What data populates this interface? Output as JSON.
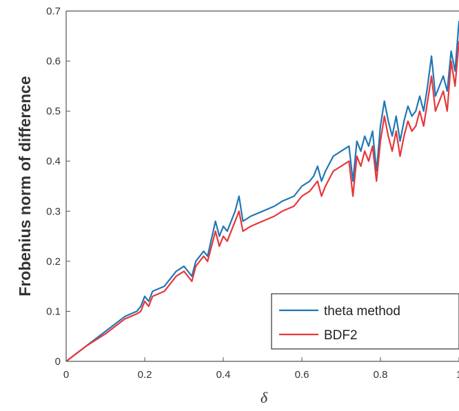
{
  "chart_data": {
    "type": "line",
    "title": "",
    "xlabel": "δ",
    "ylabel": "Frobenius norm of difference",
    "xlim": [
      0,
      1
    ],
    "ylim": [
      0,
      0.7
    ],
    "x_ticks": [
      "0",
      "0.2",
      "0.4",
      "0.6",
      "0.8",
      "1"
    ],
    "y_ticks": [
      "0",
      "0.1",
      "0.2",
      "0.3",
      "0.4",
      "0.5",
      "0.6",
      "0.7"
    ],
    "grid": false,
    "legend_position": "bottom-right",
    "series": [
      {
        "name": "theta method",
        "color": "#1f77b4",
        "x": [
          0,
          0.05,
          0.1,
          0.15,
          0.18,
          0.19,
          0.2,
          0.21,
          0.22,
          0.25,
          0.28,
          0.3,
          0.32,
          0.33,
          0.35,
          0.36,
          0.38,
          0.39,
          0.4,
          0.41,
          0.42,
          0.43,
          0.44,
          0.45,
          0.47,
          0.5,
          0.53,
          0.55,
          0.58,
          0.6,
          0.62,
          0.63,
          0.64,
          0.65,
          0.66,
          0.68,
          0.7,
          0.72,
          0.73,
          0.74,
          0.75,
          0.76,
          0.77,
          0.78,
          0.79,
          0.8,
          0.81,
          0.82,
          0.83,
          0.84,
          0.85,
          0.86,
          0.87,
          0.88,
          0.89,
          0.9,
          0.91,
          0.92,
          0.93,
          0.94,
          0.95,
          0.96,
          0.97,
          0.98,
          0.99,
          1.0
        ],
        "y": [
          0,
          0.03,
          0.06,
          0.09,
          0.1,
          0.11,
          0.13,
          0.12,
          0.14,
          0.15,
          0.18,
          0.19,
          0.17,
          0.2,
          0.22,
          0.21,
          0.28,
          0.25,
          0.27,
          0.26,
          0.28,
          0.3,
          0.33,
          0.28,
          0.29,
          0.3,
          0.31,
          0.32,
          0.33,
          0.35,
          0.36,
          0.37,
          0.39,
          0.36,
          0.38,
          0.41,
          0.42,
          0.43,
          0.36,
          0.44,
          0.42,
          0.45,
          0.43,
          0.46,
          0.38,
          0.47,
          0.52,
          0.48,
          0.45,
          0.49,
          0.44,
          0.48,
          0.51,
          0.49,
          0.5,
          0.53,
          0.5,
          0.55,
          0.61,
          0.53,
          0.55,
          0.57,
          0.54,
          0.62,
          0.58,
          0.68
        ]
      },
      {
        "name": "BDF2",
        "color": "#e8363a",
        "x": [
          0,
          0.05,
          0.1,
          0.15,
          0.18,
          0.19,
          0.2,
          0.21,
          0.22,
          0.25,
          0.28,
          0.3,
          0.32,
          0.33,
          0.35,
          0.36,
          0.38,
          0.39,
          0.4,
          0.41,
          0.42,
          0.43,
          0.44,
          0.45,
          0.47,
          0.5,
          0.53,
          0.55,
          0.58,
          0.6,
          0.62,
          0.63,
          0.64,
          0.65,
          0.66,
          0.68,
          0.7,
          0.72,
          0.73,
          0.74,
          0.75,
          0.76,
          0.77,
          0.78,
          0.79,
          0.8,
          0.81,
          0.82,
          0.83,
          0.84,
          0.85,
          0.86,
          0.87,
          0.88,
          0.89,
          0.9,
          0.91,
          0.92,
          0.93,
          0.94,
          0.95,
          0.96,
          0.97,
          0.98,
          0.99,
          1.0
        ],
        "y": [
          0,
          0.03,
          0.055,
          0.085,
          0.095,
          0.1,
          0.12,
          0.11,
          0.13,
          0.14,
          0.17,
          0.18,
          0.16,
          0.19,
          0.21,
          0.2,
          0.26,
          0.23,
          0.25,
          0.24,
          0.26,
          0.28,
          0.3,
          0.26,
          0.27,
          0.28,
          0.29,
          0.3,
          0.31,
          0.33,
          0.34,
          0.35,
          0.36,
          0.33,
          0.35,
          0.38,
          0.39,
          0.4,
          0.33,
          0.41,
          0.39,
          0.42,
          0.4,
          0.43,
          0.36,
          0.44,
          0.49,
          0.45,
          0.42,
          0.46,
          0.41,
          0.45,
          0.48,
          0.46,
          0.47,
          0.5,
          0.47,
          0.52,
          0.57,
          0.5,
          0.52,
          0.54,
          0.5,
          0.6,
          0.55,
          0.64
        ]
      }
    ]
  }
}
